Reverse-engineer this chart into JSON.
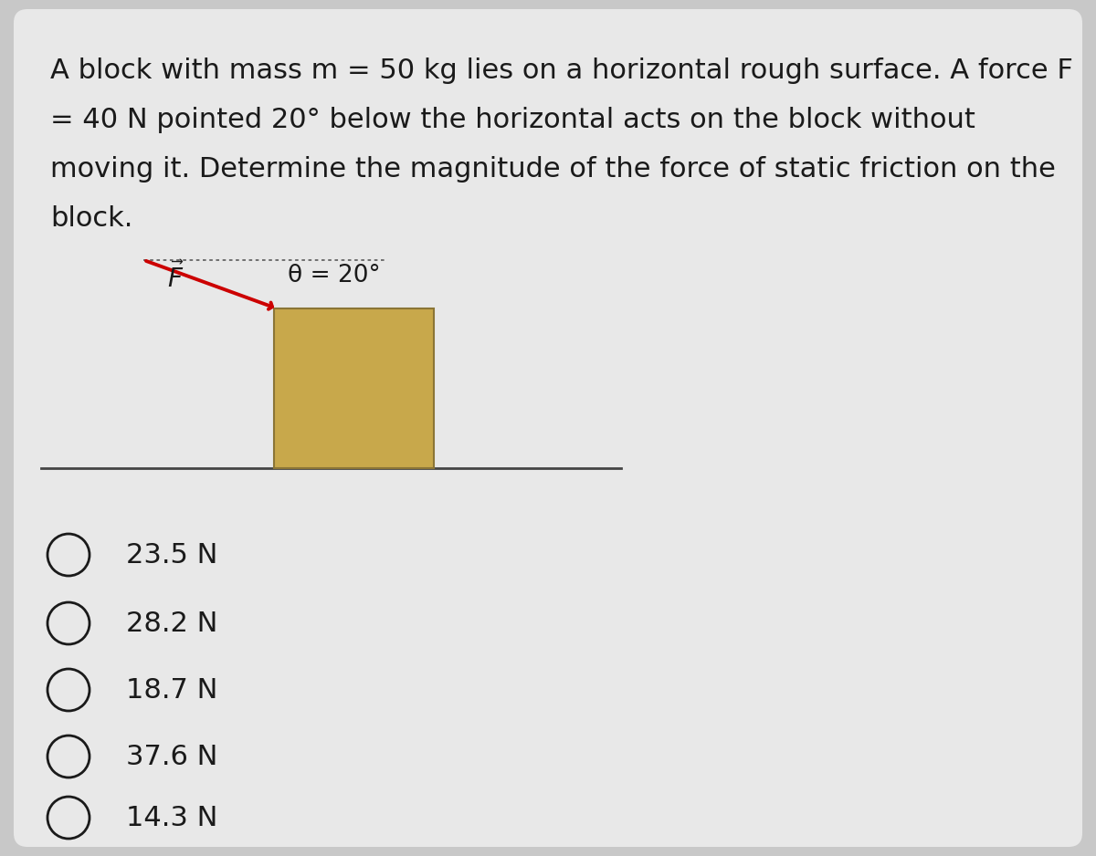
{
  "bg_color": "#c8c8c8",
  "card_color": "#e8e8e8",
  "title_text": "A block with mass m = 50 kg lies on a horizontal rough surface. A force F\n= 40 N pointed 20° below the horizontal acts on the block without\nmoving it. Determine the magnitude of the force of static friction on the\nblock.",
  "theta_label": "θ = 20°",
  "block_color": "#c8a84b",
  "block_edge_color": "#8B7536",
  "arrow_color": "#cc0000",
  "dotted_line_color": "#666666",
  "surface_color": "#444444",
  "options": [
    "23.5 N",
    "28.2 N",
    "18.7 N",
    "37.6 N",
    "14.3 N"
  ],
  "text_color": "#1a1a1a",
  "option_fontsize": 22,
  "title_fontsize": 22
}
